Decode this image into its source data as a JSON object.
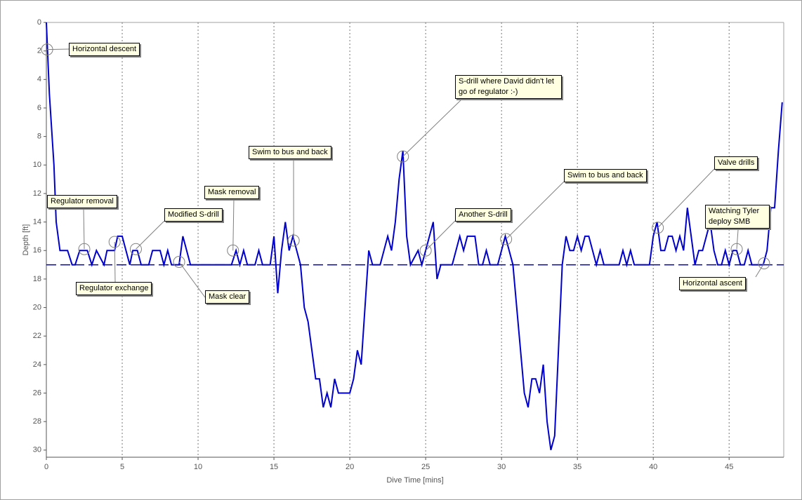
{
  "chart_data": {
    "type": "line",
    "xlabel": "Dive Time [mins]",
    "ylabel": "Depth [ft]",
    "xlim": [
      0,
      48.6
    ],
    "ylim": [
      0,
      30.5
    ],
    "inverted_y": true,
    "xticks": [
      0,
      5,
      10,
      15,
      20,
      25,
      30,
      35,
      40,
      45
    ],
    "yticks": [
      0,
      2,
      4,
      6,
      8,
      10,
      12,
      14,
      16,
      18,
      20,
      22,
      24,
      26,
      28,
      30
    ],
    "grid": true,
    "color": "#0000cc",
    "reference_line": 17,
    "x": [
      0,
      0.2,
      0.5,
      0.65,
      0.9,
      1.4,
      1.7,
      1.9,
      2.2,
      2.7,
      3,
      3.3,
      3.8,
      4,
      4.5,
      4.7,
      5,
      5.5,
      5.7,
      6,
      6.25,
      6.75,
      7,
      7.5,
      7.75,
      8,
      8.25,
      8.75,
      9,
      9.5,
      12.2,
      12.5,
      12.75,
      13,
      13.25,
      13.75,
      14,
      14.25,
      14.75,
      15,
      15.25,
      15.5,
      15.75,
      16,
      16.25,
      16.5,
      16.75,
      17,
      17.25,
      17.5,
      17.75,
      18,
      18.25,
      18.5,
      18.75,
      19,
      19.25,
      20,
      20.25,
      20.5,
      20.75,
      21,
      21.25,
      21.5,
      22,
      22.5,
      22.75,
      23,
      23.25,
      23.5,
      23.75,
      24,
      24.5,
      24.75,
      25.25,
      25.5,
      25.75,
      26,
      26.75,
      27.25,
      27.5,
      27.75,
      28.25,
      28.5,
      28.75,
      29,
      29.25,
      29.75,
      30,
      30.25,
      30.5,
      30.75,
      31,
      31.25,
      31.5,
      31.75,
      32,
      32.25,
      32.5,
      32.75,
      33,
      33.25,
      33.5,
      33.75,
      34,
      34.25,
      34.5,
      34.75,
      35,
      35.25,
      35.5,
      35.75,
      36.25,
      36.5,
      36.75,
      37.75,
      38,
      38.25,
      38.5,
      38.75,
      39.75,
      40,
      40.25,
      40.5,
      40.75,
      41,
      41.25,
      41.5,
      41.75,
      42,
      42.25,
      42.5,
      42.75,
      43,
      43.25,
      43.5,
      43.75,
      44,
      44.25,
      44.5,
      44.75,
      45,
      45.25,
      45.5,
      45.75,
      46,
      46.25,
      46.5,
      47.25,
      47.5,
      47.75,
      48,
      48.25,
      48.5
    ],
    "values": [
      0,
      5,
      10,
      14,
      16,
      16,
      17,
      17,
      16,
      16,
      17,
      16,
      17,
      16,
      16,
      15,
      15,
      17,
      16,
      16,
      17,
      17,
      16,
      16,
      17,
      16,
      17,
      17,
      15,
      17,
      17,
      16,
      17,
      16,
      17,
      17,
      16,
      17,
      17,
      15,
      19,
      16,
      14,
      16,
      15,
      16,
      17,
      20,
      21,
      23,
      25,
      25,
      27,
      26,
      27,
      25,
      26,
      26,
      25,
      23,
      24,
      20,
      16,
      17,
      17,
      15,
      16,
      14,
      11,
      9,
      15,
      17,
      16,
      17,
      15,
      14,
      18,
      17,
      17,
      15,
      16,
      15,
      15,
      17,
      17,
      16,
      17,
      17,
      16,
      15,
      16,
      17,
      20,
      23,
      26,
      27,
      25,
      25,
      26,
      24,
      28,
      30,
      29,
      23,
      17,
      15,
      16,
      16,
      15,
      16,
      15,
      15,
      17,
      16,
      17,
      17,
      16,
      17,
      16,
      17,
      17,
      15,
      14,
      16,
      16,
      15,
      15,
      16,
      15,
      16,
      13,
      15,
      17,
      16,
      16,
      15,
      14,
      16,
      17,
      17,
      16,
      17,
      16,
      16,
      17,
      17,
      16,
      17,
      17,
      16,
      13,
      13,
      9,
      5.6
    ],
    "annotations": [
      {
        "text": "Horizontal descent",
        "x": 0.05,
        "y": 1.9
      },
      {
        "text": "Regulator removal",
        "x": 2.5,
        "y": 15.9
      },
      {
        "text": "Regulator exchange",
        "x": 4.5,
        "y": 15.4
      },
      {
        "text": "Modified S-drill",
        "x": 5.9,
        "y": 15.9
      },
      {
        "text": "Mask clear",
        "x": 8.75,
        "y": 16.8
      },
      {
        "text": "Mask removal",
        "x": 12.3,
        "y": 16
      },
      {
        "text": "Swim to bus and back",
        "x": 16.3,
        "y": 15.3
      },
      {
        "text": "S-drill where David didn't let go of regulator :-)",
        "x": 23.5,
        "y": 9.4
      },
      {
        "text": "Another S-drill",
        "x": 25,
        "y": 16
      },
      {
        "text": "Swim to bus and back",
        "x": 30.3,
        "y": 15.2
      },
      {
        "text": "Valve drills",
        "x": 40.3,
        "y": 14.4
      },
      {
        "text": "Watching Tyler deploy SMB",
        "x": 45.5,
        "y": 15.9
      },
      {
        "text": "Horizontal ascent",
        "x": 47.3,
        "y": 16.9
      }
    ]
  }
}
